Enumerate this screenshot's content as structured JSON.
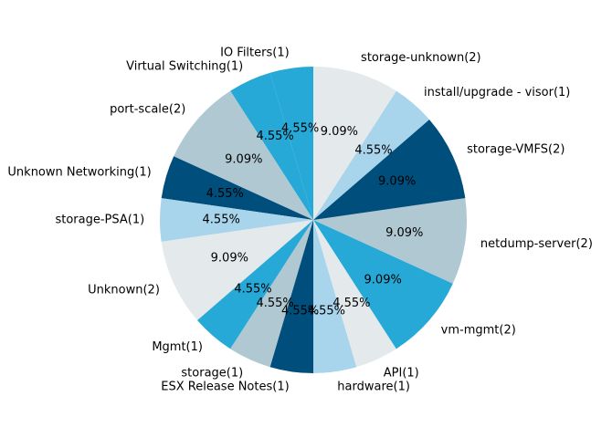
{
  "chart_data": {
    "type": "pie",
    "start_angle_deg": 90,
    "direction": "counterclockwise",
    "title": "",
    "slices": [
      {
        "label": "IO Filters(1)",
        "value": 1,
        "pct": "4.55%",
        "color": "#27a9d8"
      },
      {
        "label": "Virtual Switching(1)",
        "value": 1,
        "pct": "4.55%",
        "color": "#27a9d8"
      },
      {
        "label": "port-scale(2)",
        "value": 2,
        "pct": "9.09%",
        "color": "#b0c8d1"
      },
      {
        "label": "Unknown Networking(1)",
        "value": 1,
        "pct": "4.55%",
        "color": "#004e7c"
      },
      {
        "label": "storage-PSA(1)",
        "value": 1,
        "pct": "4.55%",
        "color": "#a8d4ec"
      },
      {
        "label": "Unknown(2)",
        "value": 2,
        "pct": "9.09%",
        "color": "#e4e9eb"
      },
      {
        "label": "Mgmt(1)",
        "value": 1,
        "pct": "4.55%",
        "color": "#27a9d8"
      },
      {
        "label": "storage(1)",
        "value": 1,
        "pct": "4.55%",
        "color": "#b0c8d1"
      },
      {
        "label": "ESX Release Notes(1)",
        "value": 1,
        "pct": "4.55%",
        "color": "#004e7c"
      },
      {
        "label": "hardware(1)",
        "value": 1,
        "pct": "4.55%",
        "color": "#a8d4ec"
      },
      {
        "label": "API(1)",
        "value": 1,
        "pct": "4.55%",
        "color": "#e4e9eb"
      },
      {
        "label": "vm-mgmt(2)",
        "value": 2,
        "pct": "9.09%",
        "color": "#27a9d8"
      },
      {
        "label": "netdump-server(2)",
        "value": 2,
        "pct": "9.09%",
        "color": "#b0c8d1"
      },
      {
        "label": "storage-VMFS(2)",
        "value": 2,
        "pct": "9.09%",
        "color": "#004e7c"
      },
      {
        "label": "install/upgrade - visor(1)",
        "value": 1,
        "pct": "4.55%",
        "color": "#a8d4ec"
      },
      {
        "label": "storage-unknown(2)",
        "value": 2,
        "pct": "9.09%",
        "color": "#e4e9eb"
      }
    ]
  }
}
